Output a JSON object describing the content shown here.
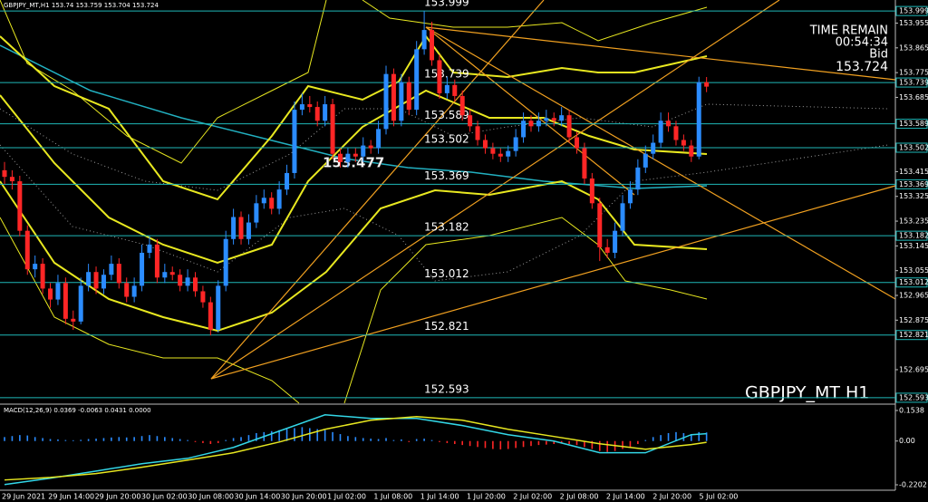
{
  "chart_data": {
    "type": "candlestick",
    "symbol": "GBPJPY_MT,H1",
    "watermark": "GBPJPY_MT H1",
    "info": {
      "time_remain_label": "TIME REMAIN",
      "time_remain": "00:54:34",
      "bid_label": "Bid"
    },
    "price_label": 153.477,
    "ylim": [
      152.573,
      154.039
    ],
    "yticks": [
      153.955,
      153.865,
      153.775,
      153.685,
      153.415,
      153.325,
      153.235,
      153.145,
      153.055,
      152.965,
      152.875,
      152.695
    ],
    "levels": [
      153.999,
      153.739,
      153.589,
      153.502,
      153.369,
      153.182,
      153.012,
      152.821,
      152.593
    ],
    "level_color": "#1fb8b8",
    "up_color": "#2b8cff",
    "down_color": "#ff2626",
    "x_labels": [
      "29 Jun 2021",
      "29 Jun 14:00",
      "29 Jun 20:00",
      "30 Jun 02:00",
      "30 Jun 08:00",
      "30 Jun 14:00",
      "30 Jun 20:00",
      "1 Jul 02:00",
      "1 Jul 08:00",
      "1 Jul 14:00",
      "1 Jul 20:00",
      "2 Jul 02:00",
      "2 Jul 08:00",
      "2 Jul 14:00",
      "2 Jul 20:00",
      "5 Jul 02:00"
    ],
    "candles": [
      [
        153.42,
        153.45,
        153.37,
        153.396
      ],
      [
        153.396,
        153.42,
        153.35,
        153.38
      ],
      [
        153.38,
        153.4,
        153.18,
        153.2
      ],
      [
        153.2,
        153.22,
        153.04,
        153.06
      ],
      [
        153.06,
        153.11,
        153.03,
        153.08
      ],
      [
        153.08,
        153.1,
        152.97,
        152.99
      ],
      [
        152.99,
        153.01,
        152.92,
        152.95
      ],
      [
        152.95,
        153.04,
        152.93,
        153.01
      ],
      [
        153.01,
        153.03,
        152.86,
        152.88
      ],
      [
        152.88,
        152.91,
        152.84,
        152.87
      ],
      [
        152.87,
        153.03,
        152.86,
        153.0
      ],
      [
        153.0,
        153.08,
        152.98,
        153.05
      ],
      [
        153.05,
        153.07,
        152.97,
        152.99
      ],
      [
        152.99,
        153.06,
        152.97,
        153.04
      ],
      [
        153.04,
        153.11,
        153.02,
        153.08
      ],
      [
        153.08,
        153.1,
        152.99,
        153.01
      ],
      [
        153.01,
        153.03,
        152.94,
        152.96
      ],
      [
        152.96,
        153.03,
        152.94,
        153.0
      ],
      [
        153.0,
        153.15,
        152.98,
        153.12
      ],
      [
        153.12,
        153.18,
        153.1,
        153.15
      ],
      [
        153.15,
        153.17,
        153.01,
        153.03
      ],
      [
        153.03,
        153.08,
        153.01,
        153.05
      ],
      [
        153.05,
        153.07,
        153.02,
        153.04
      ],
      [
        153.04,
        153.06,
        152.98,
        153.0
      ],
      [
        153.0,
        153.06,
        152.98,
        153.03
      ],
      [
        153.03,
        153.05,
        152.96,
        152.98
      ],
      [
        152.98,
        153.0,
        152.92,
        152.94
      ],
      [
        152.94,
        152.96,
        152.82,
        152.84
      ],
      [
        152.84,
        153.02,
        152.83,
        153.0
      ],
      [
        153.0,
        153.2,
        152.98,
        153.17
      ],
      [
        153.17,
        153.28,
        153.15,
        153.25
      ],
      [
        153.25,
        153.27,
        153.15,
        153.17
      ],
      [
        153.17,
        153.26,
        153.15,
        153.23
      ],
      [
        153.23,
        153.33,
        153.21,
        153.3
      ],
      [
        153.3,
        153.35,
        153.28,
        153.32
      ],
      [
        153.32,
        153.34,
        153.26,
        153.28
      ],
      [
        153.28,
        153.38,
        153.26,
        153.35
      ],
      [
        153.35,
        153.44,
        153.33,
        153.41
      ],
      [
        153.41,
        153.67,
        153.39,
        153.64
      ],
      [
        153.64,
        153.7,
        153.62,
        153.66
      ],
      [
        153.66,
        153.69,
        153.63,
        153.65
      ],
      [
        153.65,
        153.67,
        153.58,
        153.6
      ],
      [
        153.6,
        153.69,
        153.58,
        153.66
      ],
      [
        153.66,
        153.68,
        153.46,
        153.48
      ],
      [
        153.48,
        153.5,
        153.43,
        153.45
      ],
      [
        153.45,
        153.5,
        153.43,
        153.48
      ],
      [
        153.48,
        153.5,
        153.45,
        153.47
      ],
      [
        153.47,
        153.54,
        153.45,
        153.51
      ],
      [
        153.51,
        153.53,
        153.48,
        153.5
      ],
      [
        153.5,
        153.6,
        153.48,
        153.57
      ],
      [
        153.57,
        153.8,
        153.55,
        153.77
      ],
      [
        153.77,
        153.79,
        153.58,
        153.6
      ],
      [
        153.6,
        153.77,
        153.58,
        153.74
      ],
      [
        153.74,
        153.76,
        153.62,
        153.64
      ],
      [
        153.64,
        153.89,
        153.62,
        153.86
      ],
      [
        153.86,
        153.999,
        153.84,
        153.93
      ],
      [
        153.93,
        153.96,
        153.8,
        153.82
      ],
      [
        153.82,
        153.84,
        153.68,
        153.7
      ],
      [
        153.7,
        153.76,
        153.68,
        153.73
      ],
      [
        153.73,
        153.75,
        153.67,
        153.69
      ],
      [
        153.69,
        153.71,
        153.6,
        153.62
      ],
      [
        153.62,
        153.64,
        153.56,
        153.58
      ],
      [
        153.58,
        153.6,
        153.51,
        153.53
      ],
      [
        153.53,
        153.55,
        153.48,
        153.5
      ],
      [
        153.5,
        153.52,
        153.46,
        153.48
      ],
      [
        153.48,
        153.5,
        153.45,
        153.47
      ],
      [
        153.47,
        153.51,
        153.45,
        153.49
      ],
      [
        153.49,
        153.57,
        153.47,
        153.54
      ],
      [
        153.54,
        153.63,
        153.52,
        153.6
      ],
      [
        153.6,
        153.62,
        153.56,
        153.58
      ],
      [
        153.58,
        153.63,
        153.56,
        153.6
      ],
      [
        153.6,
        153.64,
        153.58,
        153.61
      ],
      [
        153.61,
        153.63,
        153.58,
        153.6
      ],
      [
        153.6,
        153.65,
        153.58,
        153.62
      ],
      [
        153.62,
        153.64,
        153.52,
        153.54
      ],
      [
        153.54,
        153.56,
        153.48,
        153.5
      ],
      [
        153.5,
        153.52,
        153.37,
        153.39
      ],
      [
        153.39,
        153.41,
        153.28,
        153.3
      ],
      [
        153.3,
        153.32,
        153.09,
        153.14
      ],
      [
        153.14,
        153.17,
        153.1,
        153.12
      ],
      [
        153.12,
        153.23,
        153.1,
        153.2
      ],
      [
        153.2,
        153.33,
        153.18,
        153.3
      ],
      [
        153.3,
        153.38,
        153.28,
        153.35
      ],
      [
        153.35,
        153.46,
        153.33,
        153.43
      ],
      [
        153.43,
        153.51,
        153.41,
        153.48
      ],
      [
        153.48,
        153.55,
        153.46,
        153.52
      ],
      [
        153.52,
        153.63,
        153.5,
        153.6
      ],
      [
        153.6,
        153.63,
        153.56,
        153.58
      ],
      [
        153.58,
        153.6,
        153.51,
        153.53
      ],
      [
        153.53,
        153.55,
        153.49,
        153.51
      ],
      [
        153.51,
        153.53,
        153.45,
        153.47
      ],
      [
        153.47,
        153.76,
        153.46,
        153.74
      ],
      [
        153.74,
        153.759,
        153.704,
        153.724
      ]
    ],
    "macd": {
      "label": "MACD(12,26,9) 0.0369 -0.0063 0.0431 0.0000",
      "ylim": [
        -0.2476,
        0.1812
      ],
      "yticks": [
        0.1538,
        {
          "value": 0,
          "label": "0.00"
        },
        -0.2202
      ],
      "histogram": [
        0.02,
        0.025,
        0.03,
        0.028,
        0.02,
        0.015,
        0.01,
        0.008,
        0.005,
        0.004,
        0.006,
        0.01,
        0.012,
        0.015,
        0.018,
        0.02,
        0.018,
        0.02,
        0.025,
        0.03,
        0.025,
        0.02,
        0.015,
        0.01,
        0.005,
        -0.005,
        -0.01,
        -0.015,
        -0.01,
        0.005,
        0.015,
        0.02,
        0.03,
        0.04,
        0.045,
        0.05,
        0.055,
        0.06,
        0.065,
        0.07,
        0.065,
        0.06,
        0.055,
        0.045,
        0.035,
        0.025,
        0.02,
        0.015,
        0.012,
        0.01,
        0.015,
        0.005,
        0.008,
        -0.005,
        0.01,
        0.012,
        0.005,
        -0.005,
        -0.01,
        -0.015,
        -0.02,
        -0.025,
        -0.03,
        -0.035,
        -0.04,
        -0.042,
        -0.04,
        -0.035,
        -0.03,
        -0.025,
        -0.02,
        -0.018,
        -0.015,
        -0.012,
        -0.015,
        -0.02,
        -0.03,
        -0.04,
        -0.05,
        -0.055,
        -0.05,
        -0.04,
        -0.03,
        -0.015,
        0.005,
        0.02,
        0.03,
        0.04,
        0.045,
        0.04,
        0.035,
        0.045,
        0.0431
      ],
      "x": [
        0,
        6,
        12,
        18,
        24,
        30,
        36,
        42,
        48,
        54,
        60,
        66,
        72,
        78,
        84,
        90,
        92
      ],
      "main": [
        -0.219,
        -0.187,
        -0.151,
        -0.114,
        -0.087,
        -0.032,
        0.05,
        0.132,
        0.114,
        0.114,
        0.078,
        0.032,
        0.0,
        -0.059,
        -0.059,
        0.032,
        0.0369
      ],
      "signal": [
        -0.196,
        -0.183,
        -0.164,
        -0.132,
        -0.096,
        -0.059,
        -0.005,
        0.059,
        0.105,
        0.123,
        0.105,
        0.059,
        0.023,
        -0.014,
        -0.041,
        -0.018,
        -0.0063
      ],
      "main_color": "#33d6e6",
      "signal_color": "#e6e620"
    }
  }
}
